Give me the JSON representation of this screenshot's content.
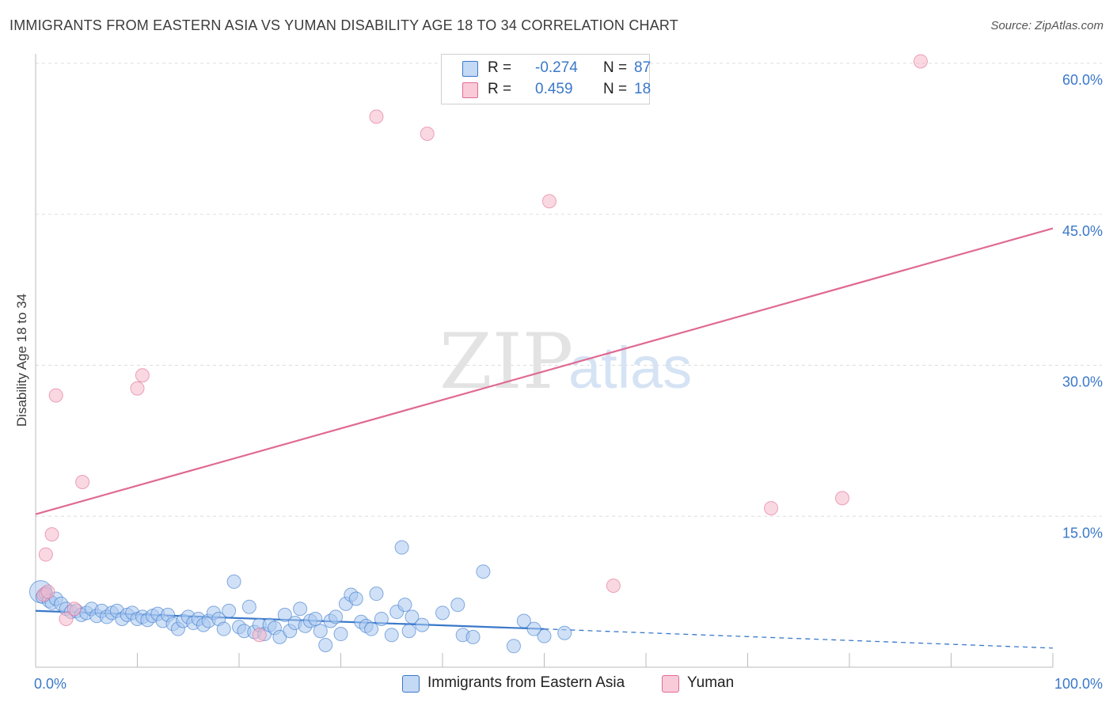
{
  "title": "IMMIGRANTS FROM EASTERN ASIA VS YUMAN DISABILITY AGE 18 TO 34 CORRELATION CHART",
  "source": "Source: ZipAtlas.com",
  "watermark": {
    "zip": "ZIP",
    "atlas": "atlas"
  },
  "legend": {
    "rows": [
      {
        "r_label": "R =",
        "r_value": "-0.274",
        "n_label": "N =",
        "n_value": "87",
        "color": "#a9c8f0"
      },
      {
        "r_label": "R =",
        "r_value": "0.459",
        "n_label": "N =",
        "n_value": "18",
        "color": "#f6b8cb"
      }
    ]
  },
  "bottom_legend": [
    {
      "label": "Immigrants from Eastern Asia",
      "color": "#a9c8f0"
    },
    {
      "label": "Yuman",
      "color": "#f6b8cb"
    }
  ],
  "chart_data": {
    "type": "scatter",
    "title": "IMMIGRANTS FROM EASTERN ASIA VS YUMAN DISABILITY AGE 18 TO 34 CORRELATION CHART",
    "xlabel": "",
    "ylabel": "Disability Age 18 to 34",
    "xlim": [
      0,
      100
    ],
    "ylim": [
      0,
      60
    ],
    "x_tick_labels": [
      {
        "value": 0,
        "label": "0.0%"
      },
      {
        "value": 100,
        "label": "100.0%"
      }
    ],
    "y_tick_labels": [
      {
        "value": 15,
        "label": "15.0%"
      },
      {
        "value": 30,
        "label": "30.0%"
      },
      {
        "value": 45,
        "label": "45.0%"
      },
      {
        "value": 60,
        "label": "60.0%"
      }
    ],
    "series": [
      {
        "name": "Immigrants from Eastern Asia",
        "color": "#3a78c9",
        "fill": "#a9c8f0",
        "points": [
          [
            0.5,
            7.5
          ],
          [
            0.7,
            7.0
          ],
          [
            1.0,
            7.3
          ],
          [
            1.3,
            6.6
          ],
          [
            1.6,
            6.4
          ],
          [
            2.0,
            6.8
          ],
          [
            2.5,
            6.3
          ],
          [
            3.0,
            5.8
          ],
          [
            3.5,
            5.5
          ],
          [
            4.0,
            5.6
          ],
          [
            4.5,
            5.2
          ],
          [
            5.0,
            5.4
          ],
          [
            5.5,
            5.8
          ],
          [
            6.0,
            5.1
          ],
          [
            6.5,
            5.6
          ],
          [
            7.0,
            5.0
          ],
          [
            7.5,
            5.4
          ],
          [
            8.0,
            5.6
          ],
          [
            8.5,
            4.8
          ],
          [
            9.0,
            5.2
          ],
          [
            9.5,
            5.4
          ],
          [
            10.0,
            4.8
          ],
          [
            10.5,
            5.0
          ],
          [
            11.0,
            4.7
          ],
          [
            11.5,
            5.1
          ],
          [
            12.0,
            5.3
          ],
          [
            12.5,
            4.6
          ],
          [
            13.0,
            5.2
          ],
          [
            13.5,
            4.3
          ],
          [
            14.0,
            3.8
          ],
          [
            14.5,
            4.6
          ],
          [
            15.0,
            5.0
          ],
          [
            15.5,
            4.4
          ],
          [
            16.0,
            4.8
          ],
          [
            16.5,
            4.2
          ],
          [
            17.0,
            4.6
          ],
          [
            17.5,
            5.4
          ],
          [
            18.0,
            4.8
          ],
          [
            18.5,
            3.8
          ],
          [
            19.0,
            5.6
          ],
          [
            19.5,
            8.5
          ],
          [
            20.0,
            4.0
          ],
          [
            20.5,
            3.6
          ],
          [
            21.0,
            6.0
          ],
          [
            21.5,
            3.5
          ],
          [
            22.0,
            4.2
          ],
          [
            22.5,
            3.3
          ],
          [
            23.0,
            4.2
          ],
          [
            23.5,
            3.9
          ],
          [
            24.0,
            3.0
          ],
          [
            24.5,
            5.2
          ],
          [
            25.0,
            3.6
          ],
          [
            25.5,
            4.4
          ],
          [
            26.0,
            5.8
          ],
          [
            26.5,
            4.1
          ],
          [
            27.0,
            4.6
          ],
          [
            27.5,
            4.8
          ],
          [
            28.0,
            3.6
          ],
          [
            28.5,
            2.2
          ],
          [
            29.0,
            4.6
          ],
          [
            29.5,
            5.0
          ],
          [
            30.0,
            3.3
          ],
          [
            30.5,
            6.3
          ],
          [
            31.0,
            7.2
          ],
          [
            31.5,
            6.8
          ],
          [
            32.0,
            4.5
          ],
          [
            32.5,
            4.1
          ],
          [
            33.0,
            3.8
          ],
          [
            33.5,
            7.3
          ],
          [
            34.0,
            4.8
          ],
          [
            35.0,
            3.2
          ],
          [
            35.5,
            5.5
          ],
          [
            36.0,
            11.9
          ],
          [
            36.3,
            6.2
          ],
          [
            36.7,
            3.6
          ],
          [
            37.0,
            5.0
          ],
          [
            38.0,
            4.2
          ],
          [
            40.0,
            5.4
          ],
          [
            41.5,
            6.2
          ],
          [
            42.0,
            3.2
          ],
          [
            43.0,
            3.0
          ],
          [
            44.0,
            9.5
          ],
          [
            47.0,
            2.1
          ],
          [
            48.0,
            4.6
          ],
          [
            50.0,
            3.1
          ],
          [
            52.0,
            3.4
          ],
          [
            49.0,
            3.8
          ]
        ],
        "trend": {
          "x": [
            0,
            50
          ],
          "y": [
            5.6,
            3.8
          ],
          "dashed_to": [
            100,
            1.9
          ]
        }
      },
      {
        "name": "Yuman",
        "color": "#e06a92",
        "fill": "#f6b8cb",
        "points": [
          [
            0.8,
            7.2
          ],
          [
            1.0,
            11.2
          ],
          [
            1.6,
            13.2
          ],
          [
            2.0,
            27.0
          ],
          [
            3.0,
            4.8
          ],
          [
            3.8,
            5.8
          ],
          [
            4.6,
            18.4
          ],
          [
            10.0,
            27.7
          ],
          [
            10.5,
            29.0
          ],
          [
            22.0,
            3.2
          ],
          [
            33.5,
            54.7
          ],
          [
            38.5,
            53.0
          ],
          [
            50.5,
            46.3
          ],
          [
            56.8,
            8.1
          ],
          [
            72.3,
            15.8
          ],
          [
            79.3,
            16.8
          ],
          [
            87.0,
            60.2
          ],
          [
            1.2,
            7.5
          ]
        ],
        "trend": {
          "x": [
            0,
            100
          ],
          "y": [
            15.2,
            43.6
          ]
        }
      }
    ],
    "grid": true,
    "legend_position": "top-center"
  }
}
